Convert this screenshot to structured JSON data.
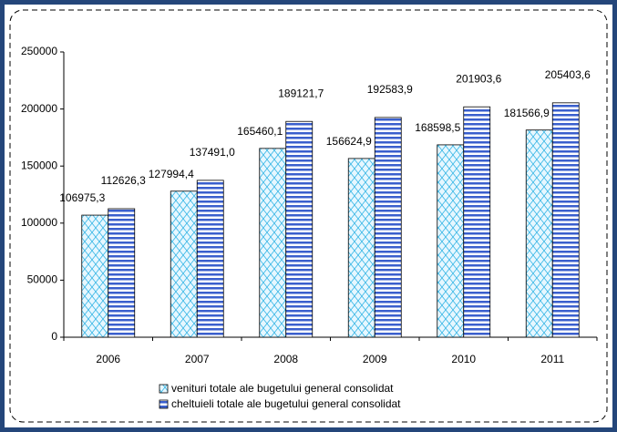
{
  "chart_data": {
    "type": "bar",
    "categories": [
      "2006",
      "2007",
      "2008",
      "2009",
      "2010",
      "2011"
    ],
    "series": [
      {
        "name": "venituri totale ale bugetului general consolidat",
        "color": "#33b5e5",
        "values": [
          106975.3,
          127994.4,
          165460.1,
          156624.9,
          168598.5,
          181566.9
        ],
        "value_labels": [
          "106975,3",
          "127994,4",
          "165460,1",
          "156624,9",
          "168598,5",
          "181566,9"
        ]
      },
      {
        "name": "cheltuieli totale ale bugetului general consolidat",
        "color": "#3a5fcd",
        "values": [
          112626.3,
          137491.0,
          189121.7,
          192583.9,
          201903.6,
          205403.6
        ],
        "value_labels": [
          "112626,3",
          "137491,0",
          "189121,7",
          "192583,9",
          "201903,6",
          "205403,6"
        ]
      }
    ],
    "ylim": [
      0,
      250000
    ],
    "yticks": [
      0,
      50000,
      100000,
      150000,
      200000,
      250000
    ]
  }
}
